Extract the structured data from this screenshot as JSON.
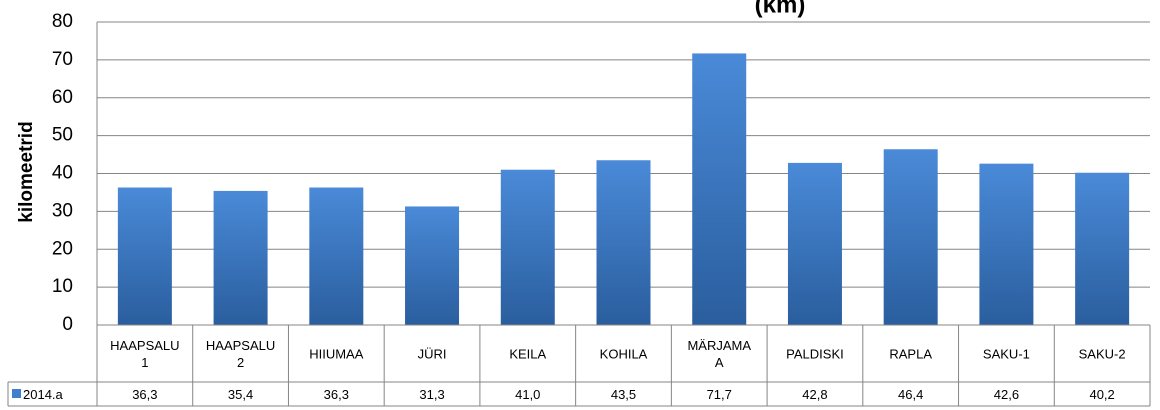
{
  "chart_data": {
    "type": "bar",
    "title": "(km)",
    "ylabel": "kilomeetrid",
    "ylim": [
      0,
      80
    ],
    "yticks": [
      0,
      10,
      20,
      30,
      40,
      50,
      60,
      70,
      80
    ],
    "grid": true,
    "categories": [
      [
        "HAAPSALU",
        "1"
      ],
      [
        "HAAPSALU",
        "2"
      ],
      [
        "HIIUMAA"
      ],
      [
        "JÜRI"
      ],
      [
        "KEILA"
      ],
      [
        "KOHILA"
      ],
      [
        "MÄRJAMA",
        "A"
      ],
      [
        "PALDISKI"
      ],
      [
        "RAPLA"
      ],
      [
        "SAKU-1"
      ],
      [
        "SAKU-2"
      ]
    ],
    "series": [
      {
        "name": "2014.a",
        "values": [
          36.3,
          35.4,
          36.3,
          31.3,
          41.0,
          43.5,
          71.7,
          42.8,
          46.4,
          42.6,
          40.2
        ],
        "labels": [
          "36,3",
          "35,4",
          "36,3",
          "31,3",
          "41,0",
          "43,5",
          "71,7",
          "42,8",
          "46,4",
          "42,6",
          "40,2"
        ],
        "color": "#3f7fcc"
      }
    ],
    "legend": "data-table"
  }
}
